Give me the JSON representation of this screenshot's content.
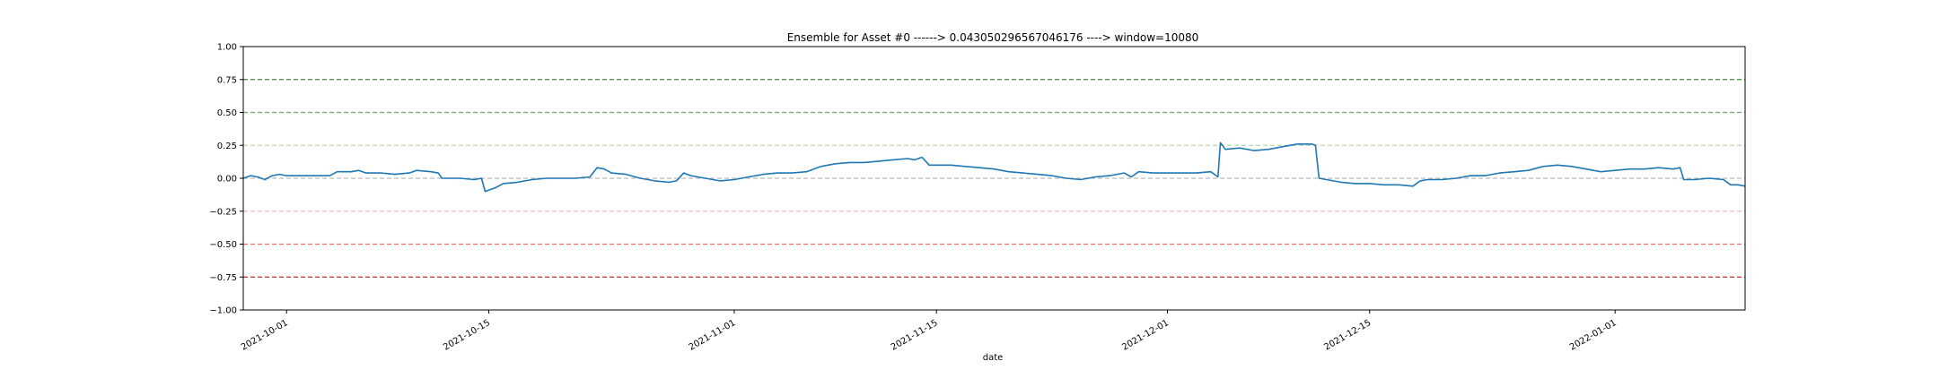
{
  "chart_data": {
    "type": "line",
    "title": "Ensemble for Asset #0 ------> 0.043050296567046176 ----> window=10080",
    "xlabel": "date",
    "ylabel": "",
    "ylim": [
      -1.0,
      1.0
    ],
    "xlim": [
      "2021-09-28",
      "2022-01-10"
    ],
    "grid": false,
    "legend": "none",
    "y_ticks": [
      1.0,
      0.75,
      0.5,
      0.25,
      0.0,
      -0.25,
      -0.5,
      -0.75,
      -1.0
    ],
    "y_tick_labels": [
      "1.00",
      "0.75",
      "0.50",
      "0.25",
      "0.00",
      "−0.25",
      "−0.50",
      "−0.75",
      "−1.00"
    ],
    "x_tick_labels": [
      "2021-10-01",
      "2021-10-15",
      "2021-11-01",
      "2021-11-15",
      "2021-12-01",
      "2021-12-15",
      "2022-01-01"
    ],
    "reference_lines": [
      {
        "y": 0.75,
        "color": "#3a8f3a"
      },
      {
        "y": 0.5,
        "color": "#6aaa6a"
      },
      {
        "y": 0.25,
        "color": "#b5d9a6"
      },
      {
        "y": 0.0,
        "color": "#bbbbbb"
      },
      {
        "y": -0.25,
        "color": "#f2b6b6"
      },
      {
        "y": -0.5,
        "color": "#e36b6b"
      },
      {
        "y": -0.75,
        "color": "#d62728"
      }
    ],
    "series": [
      {
        "color": "#1f77b4",
        "points": [
          [
            "2021-09-28T00:00",
            0.0
          ],
          [
            "2021-09-28T12:00",
            0.02
          ],
          [
            "2021-09-29T00:00",
            0.01
          ],
          [
            "2021-09-29T12:00",
            -0.01
          ],
          [
            "2021-09-30T00:00",
            0.02
          ],
          [
            "2021-09-30T12:00",
            0.03
          ],
          [
            "2021-10-01T00:00",
            0.02
          ],
          [
            "2021-10-02T00:00",
            0.02
          ],
          [
            "2021-10-03T00:00",
            0.02
          ],
          [
            "2021-10-04T00:00",
            0.02
          ],
          [
            "2021-10-04T12:00",
            0.05
          ],
          [
            "2021-10-05T12:00",
            0.05
          ],
          [
            "2021-10-06T00:00",
            0.06
          ],
          [
            "2021-10-06T12:00",
            0.04
          ],
          [
            "2021-10-07T12:00",
            0.04
          ],
          [
            "2021-10-08T12:00",
            0.03
          ],
          [
            "2021-10-09T12:00",
            0.04
          ],
          [
            "2021-10-10T00:00",
            0.06
          ],
          [
            "2021-10-11T00:00",
            0.05
          ],
          [
            "2021-10-11T12:00",
            0.04
          ],
          [
            "2021-10-11T18:00",
            0.0
          ],
          [
            "2021-10-13T00:00",
            0.0
          ],
          [
            "2021-10-14T00:00",
            -0.01
          ],
          [
            "2021-10-14T12:00",
            0.0
          ],
          [
            "2021-10-14T18:00",
            -0.1
          ],
          [
            "2021-10-15T12:00",
            -0.07
          ],
          [
            "2021-10-16T00:00",
            -0.04
          ],
          [
            "2021-10-17T00:00",
            -0.03
          ],
          [
            "2021-10-18T00:00",
            -0.01
          ],
          [
            "2021-10-19T00:00",
            0.0
          ],
          [
            "2021-10-20T00:00",
            0.0
          ],
          [
            "2021-10-21T00:00",
            0.0
          ],
          [
            "2021-10-22T00:00",
            0.01
          ],
          [
            "2021-10-22T12:00",
            0.08
          ],
          [
            "2021-10-23T00:00",
            0.07
          ],
          [
            "2021-10-23T12:00",
            0.04
          ],
          [
            "2021-10-24T12:00",
            0.03
          ],
          [
            "2021-10-25T12:00",
            0.0
          ],
          [
            "2021-10-26T12:00",
            -0.02
          ],
          [
            "2021-10-27T12:00",
            -0.03
          ],
          [
            "2021-10-28T00:00",
            -0.02
          ],
          [
            "2021-10-28T12:00",
            0.04
          ],
          [
            "2021-10-29T00:00",
            0.02
          ],
          [
            "2021-10-30T00:00",
            0.0
          ],
          [
            "2021-10-31T00:00",
            -0.02
          ],
          [
            "2021-11-01T00:00",
            -0.01
          ],
          [
            "2021-11-02T00:00",
            0.01
          ],
          [
            "2021-11-03T00:00",
            0.03
          ],
          [
            "2021-11-04T00:00",
            0.04
          ],
          [
            "2021-11-05T00:00",
            0.04
          ],
          [
            "2021-11-06T00:00",
            0.05
          ],
          [
            "2021-11-07T00:00",
            0.09
          ],
          [
            "2021-11-08T00:00",
            0.11
          ],
          [
            "2021-11-09T00:00",
            0.12
          ],
          [
            "2021-11-10T00:00",
            0.12
          ],
          [
            "2021-11-11T00:00",
            0.13
          ],
          [
            "2021-11-12T00:00",
            0.14
          ],
          [
            "2021-11-13T00:00",
            0.15
          ],
          [
            "2021-11-13T12:00",
            0.14
          ],
          [
            "2021-11-14T00:00",
            0.16
          ],
          [
            "2021-11-14T12:00",
            0.1
          ],
          [
            "2021-11-16T00:00",
            0.1
          ],
          [
            "2021-11-17T00:00",
            0.09
          ],
          [
            "2021-11-18T00:00",
            0.08
          ],
          [
            "2021-11-19T00:00",
            0.07
          ],
          [
            "2021-11-20T00:00",
            0.05
          ],
          [
            "2021-11-21T00:00",
            0.04
          ],
          [
            "2021-11-22T00:00",
            0.03
          ],
          [
            "2021-11-23T00:00",
            0.02
          ],
          [
            "2021-11-24T00:00",
            0.0
          ],
          [
            "2021-11-25T00:00",
            -0.01
          ],
          [
            "2021-11-26T00:00",
            0.01
          ],
          [
            "2021-11-27T00:00",
            0.02
          ],
          [
            "2021-11-28T00:00",
            0.04
          ],
          [
            "2021-11-28T12:00",
            0.01
          ],
          [
            "2021-11-29T00:00",
            0.05
          ],
          [
            "2021-11-30T00:00",
            0.04
          ],
          [
            "2021-12-01T00:00",
            0.04
          ],
          [
            "2021-12-02T00:00",
            0.04
          ],
          [
            "2021-12-03T00:00",
            0.04
          ],
          [
            "2021-12-04T00:00",
            0.05
          ],
          [
            "2021-12-04T12:00",
            0.01
          ],
          [
            "2021-12-04T16:00",
            0.27
          ],
          [
            "2021-12-05T00:00",
            0.22
          ],
          [
            "2021-12-06T00:00",
            0.23
          ],
          [
            "2021-12-07T00:00",
            0.21
          ],
          [
            "2021-12-08T00:00",
            0.22
          ],
          [
            "2021-12-09T00:00",
            0.24
          ],
          [
            "2021-12-10T00:00",
            0.26
          ],
          [
            "2021-12-11T00:00",
            0.26
          ],
          [
            "2021-12-11T06:00",
            0.25
          ],
          [
            "2021-12-11T12:00",
            0.0
          ],
          [
            "2021-12-12T00:00",
            -0.01
          ],
          [
            "2021-12-13T00:00",
            -0.03
          ],
          [
            "2021-12-14T00:00",
            -0.04
          ],
          [
            "2021-12-15T00:00",
            -0.04
          ],
          [
            "2021-12-16T00:00",
            -0.05
          ],
          [
            "2021-12-17T00:00",
            -0.05
          ],
          [
            "2021-12-18T00:00",
            -0.06
          ],
          [
            "2021-12-18T12:00",
            -0.02
          ],
          [
            "2021-12-19T00:00",
            -0.01
          ],
          [
            "2021-12-20T00:00",
            -0.01
          ],
          [
            "2021-12-21T00:00",
            0.0
          ],
          [
            "2021-12-21T12:00",
            0.01
          ],
          [
            "2021-12-22T00:00",
            0.02
          ],
          [
            "2021-12-23T00:00",
            0.02
          ],
          [
            "2021-12-24T00:00",
            0.04
          ],
          [
            "2021-12-25T00:00",
            0.05
          ],
          [
            "2021-12-26T00:00",
            0.06
          ],
          [
            "2021-12-27T00:00",
            0.09
          ],
          [
            "2021-12-28T00:00",
            0.1
          ],
          [
            "2021-12-29T00:00",
            0.09
          ],
          [
            "2021-12-30T00:00",
            0.07
          ],
          [
            "2021-12-31T00:00",
            0.05
          ],
          [
            "2022-01-01T00:00",
            0.06
          ],
          [
            "2022-01-02T00:00",
            0.07
          ],
          [
            "2022-01-03T00:00",
            0.07
          ],
          [
            "2022-01-04T00:00",
            0.08
          ],
          [
            "2022-01-05T00:00",
            0.07
          ],
          [
            "2022-01-05T12:00",
            0.08
          ],
          [
            "2022-01-05T18:00",
            -0.01
          ],
          [
            "2022-01-06T12:00",
            -0.01
          ],
          [
            "2022-01-07T12:00",
            0.0
          ],
          [
            "2022-01-08T12:00",
            -0.01
          ],
          [
            "2022-01-09T00:00",
            -0.05
          ],
          [
            "2022-01-09T12:00",
            -0.05
          ],
          [
            "2022-01-10T00:00",
            -0.06
          ]
        ]
      }
    ]
  }
}
